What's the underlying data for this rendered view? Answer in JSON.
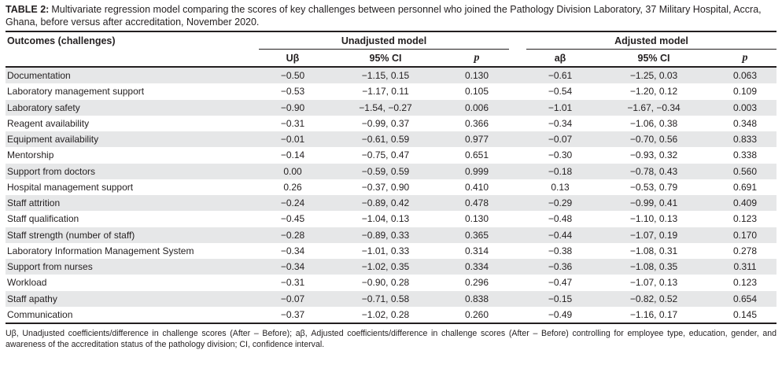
{
  "title": {
    "label": "TABLE 2:",
    "text": "Multivariate regression model comparing the scores of key challenges between personnel who joined the Pathology Division Laboratory, 37 Military Hospital, Accra, Ghana, before versus after accreditation, November 2020."
  },
  "colors": {
    "stripe": "#e6e7e8",
    "rule": "#231f20",
    "text": "#231f20"
  },
  "table": {
    "outcome_header": "Outcomes (challenges)",
    "groups": [
      {
        "label": "Unadjusted model"
      },
      {
        "label": "Adjusted model"
      }
    ],
    "columns": {
      "unadjusted": [
        "Uβ",
        "95% CI",
        "p"
      ],
      "adjusted": [
        "aβ",
        "95% CI",
        "p"
      ]
    },
    "rows": [
      {
        "outcome": "Documentation",
        "u_beta": "−0.50",
        "u_ci": "−1.15, 0.15",
        "u_p": "0.130",
        "a_beta": "−0.61",
        "a_ci": "−1.25, 0.03",
        "a_p": "0.063"
      },
      {
        "outcome": "Laboratory management support",
        "u_beta": "−0.53",
        "u_ci": "−1.17, 0.11",
        "u_p": "0.105",
        "a_beta": "−0.54",
        "a_ci": "−1.20, 0.12",
        "a_p": "0.109"
      },
      {
        "outcome": "Laboratory safety",
        "u_beta": "−0.90",
        "u_ci": "−1.54, −0.27",
        "u_p": "0.006",
        "a_beta": "−1.01",
        "a_ci": "−1.67, −0.34",
        "a_p": "0.003"
      },
      {
        "outcome": "Reagent availability",
        "u_beta": "−0.31",
        "u_ci": "−0.99, 0.37",
        "u_p": "0.366",
        "a_beta": "−0.34",
        "a_ci": "−1.06, 0.38",
        "a_p": "0.348"
      },
      {
        "outcome": "Equipment availability",
        "u_beta": "−0.01",
        "u_ci": "−0.61, 0.59",
        "u_p": "0.977",
        "a_beta": "−0.07",
        "a_ci": "−0.70, 0.56",
        "a_p": "0.833"
      },
      {
        "outcome": "Mentorship",
        "u_beta": "−0.14",
        "u_ci": "−0.75, 0.47",
        "u_p": "0.651",
        "a_beta": "−0.30",
        "a_ci": "−0.93, 0.32",
        "a_p": "0.338"
      },
      {
        "outcome": "Support from doctors",
        "u_beta": "0.00",
        "u_ci": "−0.59, 0.59",
        "u_p": "0.999",
        "a_beta": "−0.18",
        "a_ci": "−0.78, 0.43",
        "a_p": "0.560"
      },
      {
        "outcome": "Hospital management support",
        "u_beta": "0.26",
        "u_ci": "−0.37, 0.90",
        "u_p": "0.410",
        "a_beta": "0.13",
        "a_ci": "−0.53, 0.79",
        "a_p": "0.691"
      },
      {
        "outcome": "Staff attrition",
        "u_beta": "−0.24",
        "u_ci": "−0.89, 0.42",
        "u_p": "0.478",
        "a_beta": "−0.29",
        "a_ci": "−0.99, 0.41",
        "a_p": "0.409"
      },
      {
        "outcome": "Staff qualification",
        "u_beta": "−0.45",
        "u_ci": "−1.04, 0.13",
        "u_p": "0.130",
        "a_beta": "−0.48",
        "a_ci": "−1.10, 0.13",
        "a_p": "0.123"
      },
      {
        "outcome": "Staff strength (number of staff)",
        "u_beta": "−0.28",
        "u_ci": "−0.89, 0.33",
        "u_p": "0.365",
        "a_beta": "−0.44",
        "a_ci": "−1.07, 0.19",
        "a_p": "0.170"
      },
      {
        "outcome": "Laboratory Information Management System",
        "u_beta": "−0.34",
        "u_ci": "−1.01, 0.33",
        "u_p": "0.314",
        "a_beta": "−0.38",
        "a_ci": "−1.08, 0.31",
        "a_p": "0.278"
      },
      {
        "outcome": "Support from nurses",
        "u_beta": "−0.34",
        "u_ci": "−1.02, 0.35",
        "u_p": "0.334",
        "a_beta": "−0.36",
        "a_ci": "−1.08, 0.35",
        "a_p": "0.311"
      },
      {
        "outcome": "Workload",
        "u_beta": "−0.31",
        "u_ci": "−0.90, 0.28",
        "u_p": "0.296",
        "a_beta": "−0.47",
        "a_ci": "−1.07, 0.13",
        "a_p": "0.123"
      },
      {
        "outcome": "Staff apathy",
        "u_beta": "−0.07",
        "u_ci": "−0.71, 0.58",
        "u_p": "0.838",
        "a_beta": "−0.15",
        "a_ci": "−0.82, 0.52",
        "a_p": "0.654"
      },
      {
        "outcome": "Communication",
        "u_beta": "−0.37",
        "u_ci": "−1.02, 0.28",
        "u_p": "0.260",
        "a_beta": "−0.49",
        "a_ci": "−1.16, 0.17",
        "a_p": "0.145"
      }
    ]
  },
  "footnote": "Uβ, Unadjusted coefficients/difference in challenge scores (After – Before); aβ, Adjusted coefficients/difference in challenge scores (After – Before) controlling for employee type, education, gender, and awareness of the accreditation status of the pathology division; CI, confidence interval."
}
